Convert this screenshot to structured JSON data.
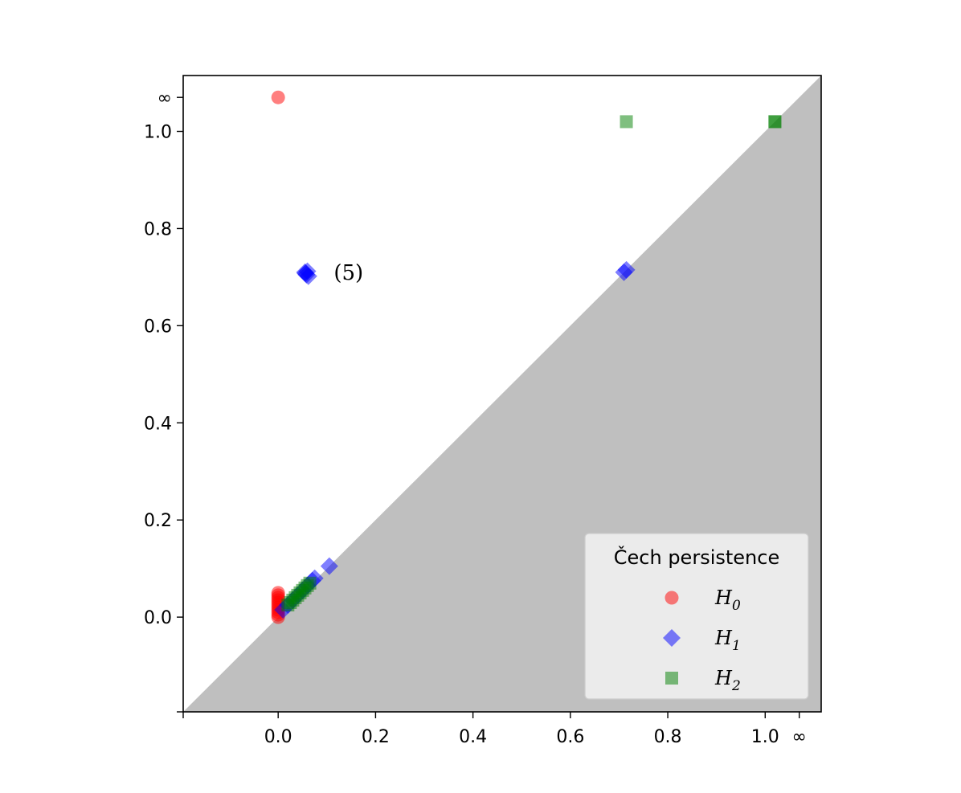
{
  "chart_data": {
    "type": "scatter",
    "title": "",
    "xlabel": "",
    "ylabel": "",
    "xlim": [
      -0.195,
      1.115
    ],
    "ylim": [
      -0.195,
      1.115
    ],
    "grid": false,
    "diagonal_shaded": true,
    "diagonal_color": "#bfbfbf",
    "x_ticks": [
      {
        "value": -0.195,
        "label": ""
      },
      {
        "value": 0.0,
        "label": "0.0"
      },
      {
        "value": 0.2,
        "label": "0.2"
      },
      {
        "value": 0.4,
        "label": "0.4"
      },
      {
        "value": 0.6,
        "label": "0.6"
      },
      {
        "value": 0.8,
        "label": "0.8"
      },
      {
        "value": 1.0,
        "label": "1.0"
      },
      {
        "value": 1.07,
        "label": "∞"
      }
    ],
    "y_ticks": [
      {
        "value": -0.195,
        "label": ""
      },
      {
        "value": 0.0,
        "label": "0.0"
      },
      {
        "value": 0.2,
        "label": "0.2"
      },
      {
        "value": 0.4,
        "label": "0.4"
      },
      {
        "value": 0.6,
        "label": "0.6"
      },
      {
        "value": 0.8,
        "label": "0.8"
      },
      {
        "value": 1.0,
        "label": "1.0"
      },
      {
        "value": 1.07,
        "label": "∞"
      }
    ],
    "legend": {
      "title": "Čech persistence",
      "placement": "lower-right",
      "entries": [
        {
          "base": "H",
          "sub": "0",
          "series": "H0"
        },
        {
          "base": "H",
          "sub": "1",
          "series": "H1"
        },
        {
          "base": "H",
          "sub": "2",
          "series": "H2"
        }
      ]
    },
    "series": [
      {
        "name": "H0",
        "marker": "circle",
        "color": "#ff0000",
        "points": [
          [
            0.0,
            1.07
          ],
          [
            0.0,
            0.0
          ],
          [
            0.0,
            0.005
          ],
          [
            0.0,
            0.01
          ],
          [
            0.0,
            0.015
          ],
          [
            0.0,
            0.02
          ],
          [
            0.0,
            0.025
          ],
          [
            0.0,
            0.03
          ],
          [
            0.0,
            0.035
          ],
          [
            0.0,
            0.04
          ],
          [
            0.0,
            0.045
          ],
          [
            0.0,
            0.05
          ]
        ]
      },
      {
        "name": "H1",
        "marker": "diamond",
        "color": "#0000ff",
        "points": [
          [
            0.055,
            0.71
          ],
          [
            0.058,
            0.705
          ],
          [
            0.06,
            0.712
          ],
          [
            0.056,
            0.708
          ],
          [
            0.062,
            0.702
          ],
          [
            0.71,
            0.71
          ],
          [
            0.715,
            0.715
          ],
          [
            0.105,
            0.105
          ],
          [
            0.01,
            0.015
          ],
          [
            0.02,
            0.025
          ],
          [
            0.03,
            0.035
          ],
          [
            0.04,
            0.045
          ],
          [
            0.05,
            0.055
          ],
          [
            0.06,
            0.065
          ],
          [
            0.07,
            0.075
          ],
          [
            0.075,
            0.08
          ]
        ]
      },
      {
        "name": "H2",
        "marker": "square",
        "color": "#008000",
        "points": [
          [
            0.715,
            1.02
          ],
          [
            1.02,
            1.02
          ],
          [
            1.02,
            1.02
          ],
          [
            0.02,
            0.025
          ],
          [
            0.025,
            0.03
          ],
          [
            0.03,
            0.035
          ],
          [
            0.035,
            0.04
          ],
          [
            0.04,
            0.045
          ],
          [
            0.045,
            0.05
          ],
          [
            0.05,
            0.055
          ],
          [
            0.055,
            0.06
          ],
          [
            0.06,
            0.065
          ],
          [
            0.065,
            0.07
          ]
        ]
      }
    ],
    "annotations": [
      {
        "text": "(5)",
        "x": 0.058,
        "y": 0.71
      }
    ]
  }
}
